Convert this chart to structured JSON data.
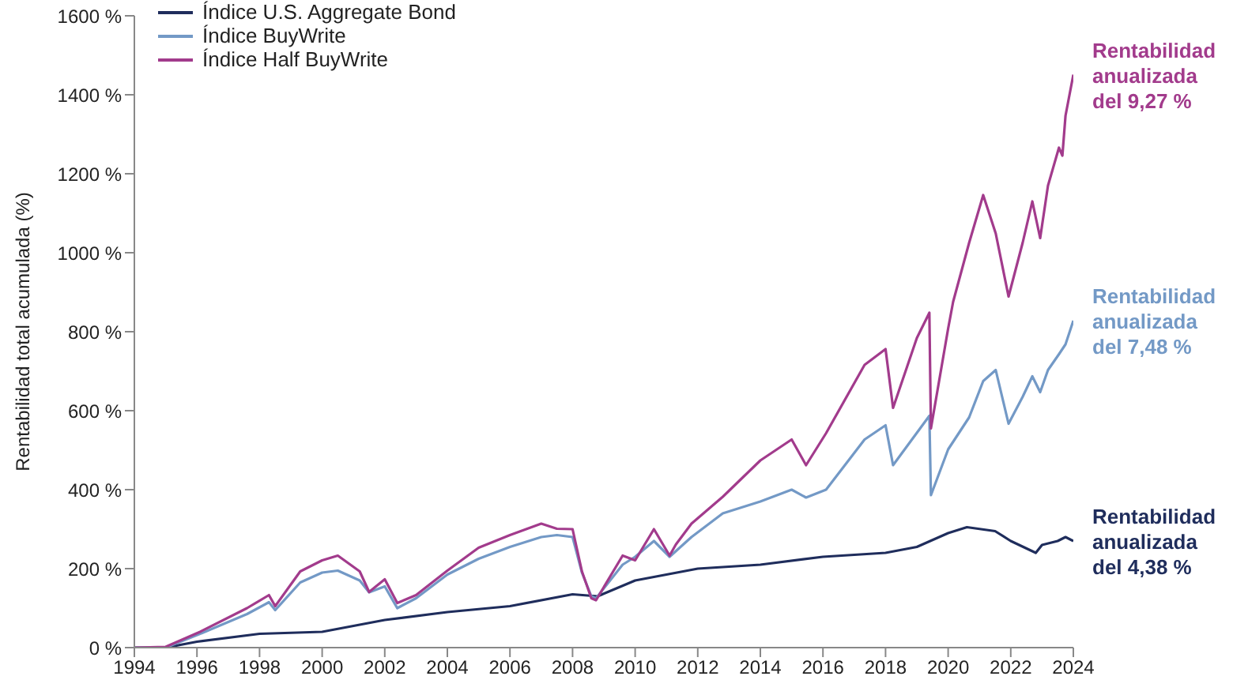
{
  "chart_data": {
    "type": "line",
    "ylabel": "Rentabilidad total acumulada (%)",
    "xlim": [
      1994,
      2024
    ],
    "xticks": [
      1994,
      1996,
      1998,
      2000,
      2002,
      2004,
      2006,
      2008,
      2010,
      2012,
      2014,
      2016,
      2018,
      2020,
      2022,
      2024
    ],
    "ylim": [
      0,
      1600
    ],
    "yticks": [
      {
        "value": 0,
        "label": "0 %"
      },
      {
        "value": 200,
        "label": "200 %"
      },
      {
        "value": 400,
        "label": "400 %"
      },
      {
        "value": 600,
        "label": "600 %"
      },
      {
        "value": 800,
        "label": "800 %"
      },
      {
        "value": 1000,
        "label": "1000 %"
      },
      {
        "value": 1200,
        "label": "1200 %"
      },
      {
        "value": 1400,
        "label": "1400 %"
      },
      {
        "value": 1600,
        "label": "1600 %"
      }
    ],
    "grid": false,
    "legend": "top left",
    "marker": "none",
    "line_style": "solid",
    "series": [
      {
        "name": "Índice U.S. Aggregate Bond",
        "color": "#1f2d5c",
        "x": [
          1994,
          1995,
          1996,
          1998,
          2000,
          2002,
          2004,
          2006,
          2008,
          2008.8,
          2010,
          2012,
          2014,
          2016,
          2018,
          2019,
          2020,
          2020.6,
          2021.5,
          2022,
          2022.8,
          2023,
          2023.5,
          2023.75,
          2024
        ],
        "values": [
          0,
          0,
          15,
          35,
          40,
          70,
          90,
          105,
          135,
          130,
          170,
          200,
          210,
          230,
          240,
          255,
          290,
          305,
          295,
          270,
          240,
          260,
          270,
          280,
          270
        ]
      },
      {
        "name": "Índice BuyWrite",
        "color": "#7399c6",
        "x": [
          1994,
          1995,
          1996.1,
          1997.6,
          1998.3,
          1998.5,
          1999.3,
          2000,
          2000.5,
          2001.2,
          2001.5,
          2002,
          2002.4,
          2003,
          2004,
          2005,
          2006,
          2007,
          2007.5,
          2008,
          2008.3,
          2008.6,
          2008.75,
          2009.6,
          2010,
          2010.6,
          2011.1,
          2011.8,
          2012.8,
          2014,
          2015,
          2015.46,
          2016.1,
          2017.33,
          2018,
          2018.24,
          2019.4,
          2019.45,
          2020,
          2020.67,
          2021.12,
          2021.52,
          2021.93,
          2022.38,
          2022.69,
          2022.94,
          2023.19,
          2023.54,
          2023.75,
          2024
        ],
        "values": [
          0,
          0,
          35,
          85,
          115,
          95,
          165,
          190,
          195,
          170,
          140,
          155,
          100,
          125,
          185,
          225,
          255,
          280,
          285,
          280,
          190,
          130,
          125,
          210,
          230,
          270,
          230,
          280,
          340,
          370,
          400,
          380,
          400,
          527,
          563,
          462,
          587,
          386,
          502,
          583,
          675,
          703,
          567,
          635,
          687,
          647,
          703,
          743,
          768,
          828
        ]
      },
      {
        "name": "Índice Half BuyWrite",
        "color": "#a23b8c",
        "x": [
          1994,
          1995,
          1996.1,
          1997.6,
          1998.3,
          1998.5,
          1999.3,
          2000,
          2000.5,
          2001.2,
          2001.5,
          2002,
          2002.4,
          2003,
          2004,
          2005,
          2006,
          2007,
          2007.5,
          2008,
          2008.3,
          2008.6,
          2008.75,
          2009.6,
          2010,
          2010.6,
          2011.1,
          2011.3,
          2011.8,
          2012.8,
          2014,
          2015,
          2015.46,
          2016.1,
          2017.33,
          2018,
          2018.24,
          2019,
          2019.4,
          2019.45,
          2020,
          2020.16,
          2020.67,
          2021.12,
          2021.52,
          2021.93,
          2022.38,
          2022.69,
          2022.94,
          2023.19,
          2023.54,
          2023.65,
          2023.75,
          2024
        ],
        "values": [
          0,
          2,
          40,
          100,
          133,
          105,
          193,
          221,
          233,
          193,
          141,
          173,
          113,
          133,
          195,
          253,
          285,
          314,
          301,
          300,
          193,
          125,
          120,
          233,
          221,
          300,
          233,
          261,
          314,
          382,
          474,
          527,
          462,
          543,
          716,
          756,
          607,
          784,
          848,
          555,
          808,
          876,
          1025,
          1146,
          1049,
          889,
          1025,
          1130,
          1037,
          1170,
          1266,
          1246,
          1347,
          1451
        ]
      }
    ],
    "annotations": [
      "Rentabilidad\nanualizada\ndel 9,27 %",
      "Rentabilidad\nanualizada\ndel 7,48 %",
      "Rentabilidad\nanualizada\ndel 4,38 %"
    ]
  }
}
